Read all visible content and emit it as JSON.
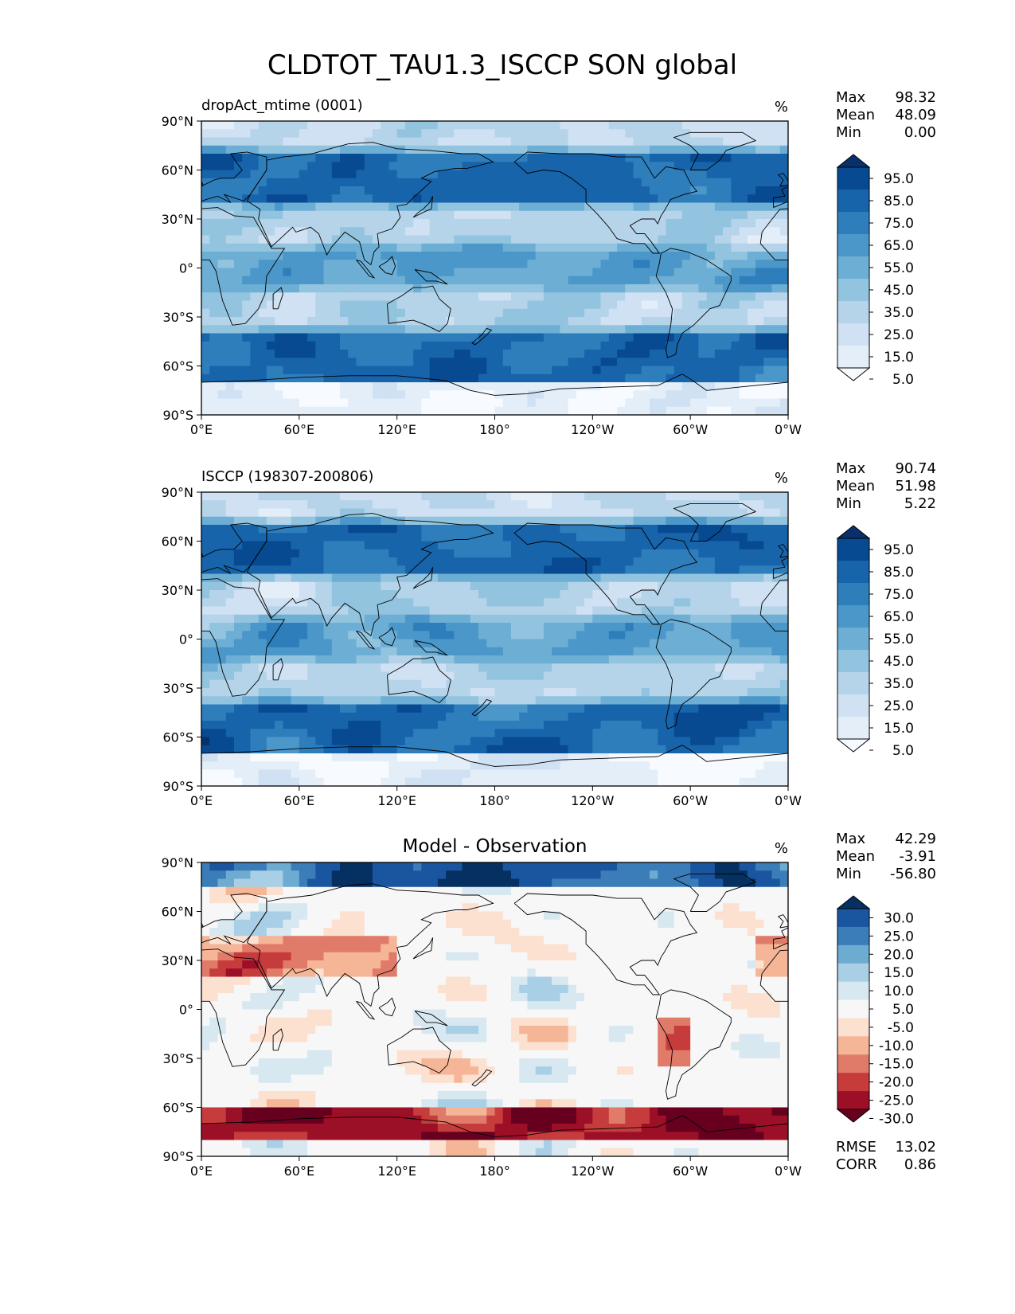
{
  "figure_title": "CLDTOT_TAU1.3_ISCCP SON global",
  "stat_labels": {
    "max": "Max",
    "mean": "Mean",
    "min": "Min",
    "rmse": "RMSE",
    "corr": "CORR"
  },
  "colors": {
    "blues": [
      "#f7fbff",
      "#e3eef9",
      "#cfe1f2",
      "#b5d4e9",
      "#93c4df",
      "#6daed5",
      "#4b97c9",
      "#2f7ebc",
      "#1764ab",
      "#084a91",
      "#08306b"
    ],
    "diff": [
      "#67001f",
      "#9c1027",
      "#c63c3d",
      "#e07b6a",
      "#f5b597",
      "#fce0d0",
      "#f7f7f7",
      "#d7e8f1",
      "#a8cfe5",
      "#6eabd0",
      "#3a7db8",
      "#1a56a0",
      "#053061"
    ],
    "land_outline": "#000000"
  },
  "chart_data": [
    {
      "type": "heatmap",
      "title": "dropAct_mtime (0001)",
      "units": "%",
      "x_ticks": [
        "0°E",
        "60°E",
        "120°E",
        "180°",
        "120°W",
        "60°W",
        "0°W"
      ],
      "y_ticks": [
        "90°N",
        "60°N",
        "30°N",
        "0°",
        "30°S",
        "60°S",
        "90°S"
      ],
      "xlim": [
        0,
        360
      ],
      "ylim": [
        -90,
        90
      ],
      "stats": {
        "max": "98.32",
        "mean": "48.09",
        "min": "0.00"
      },
      "colorbar": {
        "type": "sequential",
        "labels": [
          "95.0",
          "85.0",
          "75.0",
          "65.0",
          "55.0",
          "45.0",
          "35.0",
          "25.0",
          "15.0",
          "5.0"
        ]
      }
    },
    {
      "type": "heatmap",
      "title": "ISCCP (198307-200806)",
      "units": "%",
      "x_ticks": [
        "0°E",
        "60°E",
        "120°E",
        "180°",
        "120°W",
        "60°W",
        "0°W"
      ],
      "y_ticks": [
        "90°N",
        "60°N",
        "30°N",
        "0°",
        "30°S",
        "60°S",
        "90°S"
      ],
      "xlim": [
        0,
        360
      ],
      "ylim": [
        -90,
        90
      ],
      "stats": {
        "max": "90.74",
        "mean": "51.98",
        "min": "5.22"
      },
      "colorbar": {
        "type": "sequential",
        "labels": [
          "95.0",
          "85.0",
          "75.0",
          "65.0",
          "55.0",
          "45.0",
          "35.0",
          "25.0",
          "15.0",
          "5.0"
        ]
      }
    },
    {
      "type": "heatmap",
      "title": "Model - Observation",
      "units": "%",
      "x_ticks": [
        "0°E",
        "60°E",
        "120°E",
        "180°",
        "120°W",
        "60°W",
        "0°W"
      ],
      "y_ticks": [
        "90°N",
        "60°N",
        "30°N",
        "0°",
        "30°S",
        "60°S",
        "90°S"
      ],
      "xlim": [
        0,
        360
      ],
      "ylim": [
        -90,
        90
      ],
      "stats": {
        "max": "42.29",
        "mean": "-3.91",
        "min": "-56.80",
        "rmse": "13.02",
        "corr": "0.86"
      },
      "colorbar": {
        "type": "diverging",
        "labels": [
          "30.0",
          "25.0",
          "20.0",
          "15.0",
          "10.0",
          "5.0",
          "-5.0",
          "-10.0",
          "-15.0",
          "-20.0",
          "-25.0",
          "-30.0"
        ]
      }
    }
  ]
}
